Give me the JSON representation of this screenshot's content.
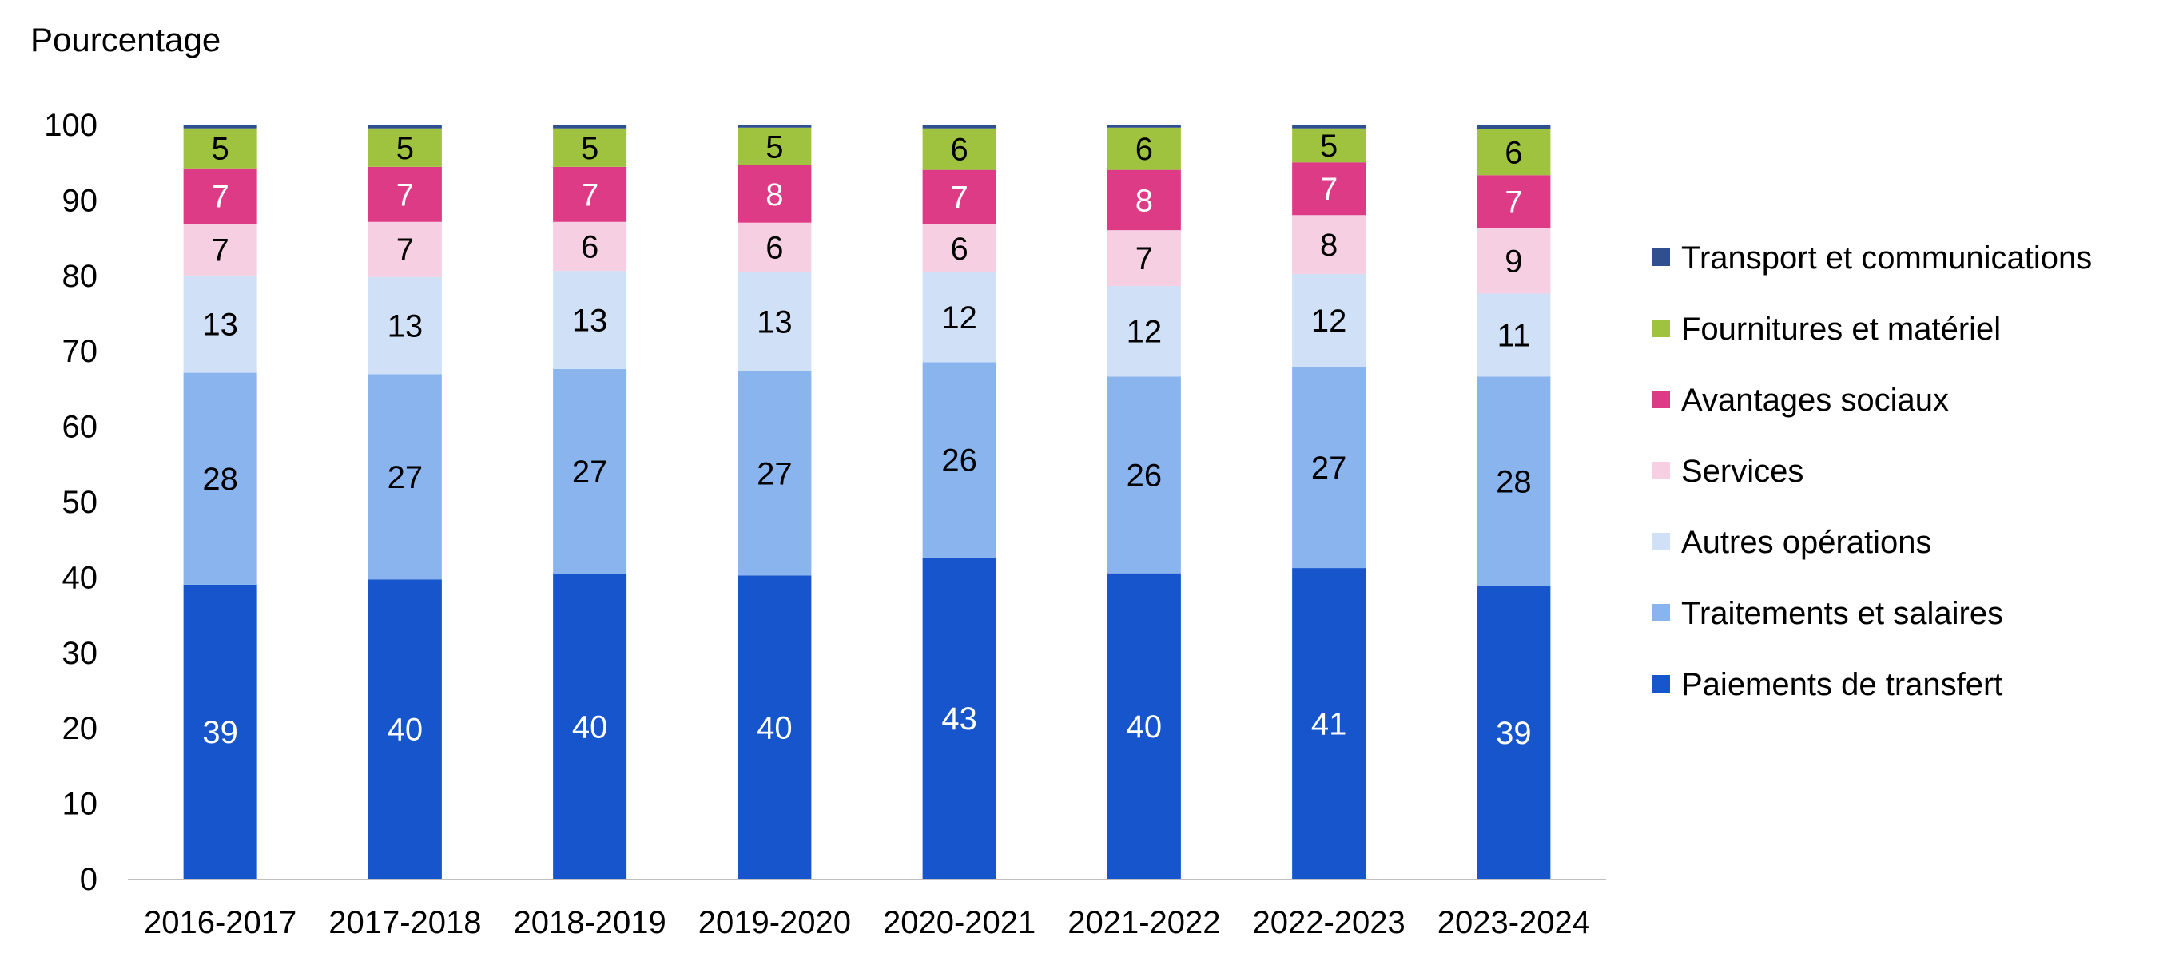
{
  "chart_data": {
    "type": "bar",
    "stacked": true,
    "ylabel": "Pourcentage",
    "ylim": [
      0,
      100
    ],
    "yticks": [
      0,
      10,
      20,
      30,
      40,
      50,
      60,
      70,
      80,
      90,
      100
    ],
    "grid": false,
    "legend_position": "right",
    "categories": [
      "2016-2017",
      "2017-2018",
      "2018-2019",
      "2019-2020",
      "2020-2021",
      "2021-2022",
      "2022-2023",
      "2023-2024"
    ],
    "series": [
      {
        "name": "Paiements de transfert",
        "color": "#1655cc",
        "label_color": "#ffffff",
        "values": [
          39,
          39.7,
          40.4,
          40.2,
          42.6,
          40.5,
          41.2,
          38.8
        ]
      },
      {
        "name": "Traitements et salaires",
        "color": "#8ab4ee",
        "label_color": "#000000",
        "values": [
          28.1,
          27.2,
          27.2,
          27.1,
          25.9,
          26.1,
          26.7,
          27.8
        ]
      },
      {
        "name": "Autres opérations",
        "color": "#cfe0f7",
        "label_color": "#000000",
        "values": [
          12.9,
          12.9,
          13.0,
          13.2,
          11.9,
          12.0,
          12.3,
          11.0
        ]
      },
      {
        "name": "Services",
        "color": "#f7cfe2",
        "label_color": "#000000",
        "values": [
          6.8,
          7.3,
          6.5,
          6.5,
          6.4,
          7.4,
          7.8,
          8.7
        ]
      },
      {
        "name": "Avantages sociaux",
        "color": "#dd3b86",
        "label_color": "#ffffff",
        "values": [
          7.4,
          7.3,
          7.3,
          7.6,
          7.2,
          8.0,
          7.0,
          7.0
        ]
      },
      {
        "name": "Fournitures et matériel",
        "color": "#9fc33f",
        "label_color": "#000000",
        "values": [
          5.3,
          5.1,
          5.1,
          5.0,
          5.5,
          5.6,
          4.5,
          6.1
        ]
      },
      {
        "name": "Transport et communications",
        "color": "#2f4f8f",
        "label_color": "#ffffff",
        "values": [
          0.5,
          0.5,
          0.5,
          0.4,
          0.5,
          0.4,
          0.5,
          0.6
        ]
      }
    ],
    "data_labels": [
      [
        39,
        40,
        40,
        40,
        43,
        40,
        41,
        39
      ],
      [
        28,
        27,
        27,
        27,
        26,
        26,
        27,
        28
      ],
      [
        13,
        13,
        13,
        13,
        12,
        12,
        12,
        11
      ],
      [
        7,
        7,
        6,
        6,
        6,
        7,
        8,
        9
      ],
      [
        7,
        7,
        7,
        8,
        7,
        8,
        7,
        7
      ],
      [
        5,
        5,
        5,
        5,
        6,
        6,
        5,
        6
      ],
      [
        null,
        null,
        null,
        null,
        null,
        null,
        null,
        null
      ]
    ],
    "legend_order": [
      "Transport et communications",
      "Fournitures et matériel",
      "Avantages sociaux",
      "Services",
      "Autres opérations",
      "Traitements et salaires",
      "Paiements de transfert"
    ]
  }
}
